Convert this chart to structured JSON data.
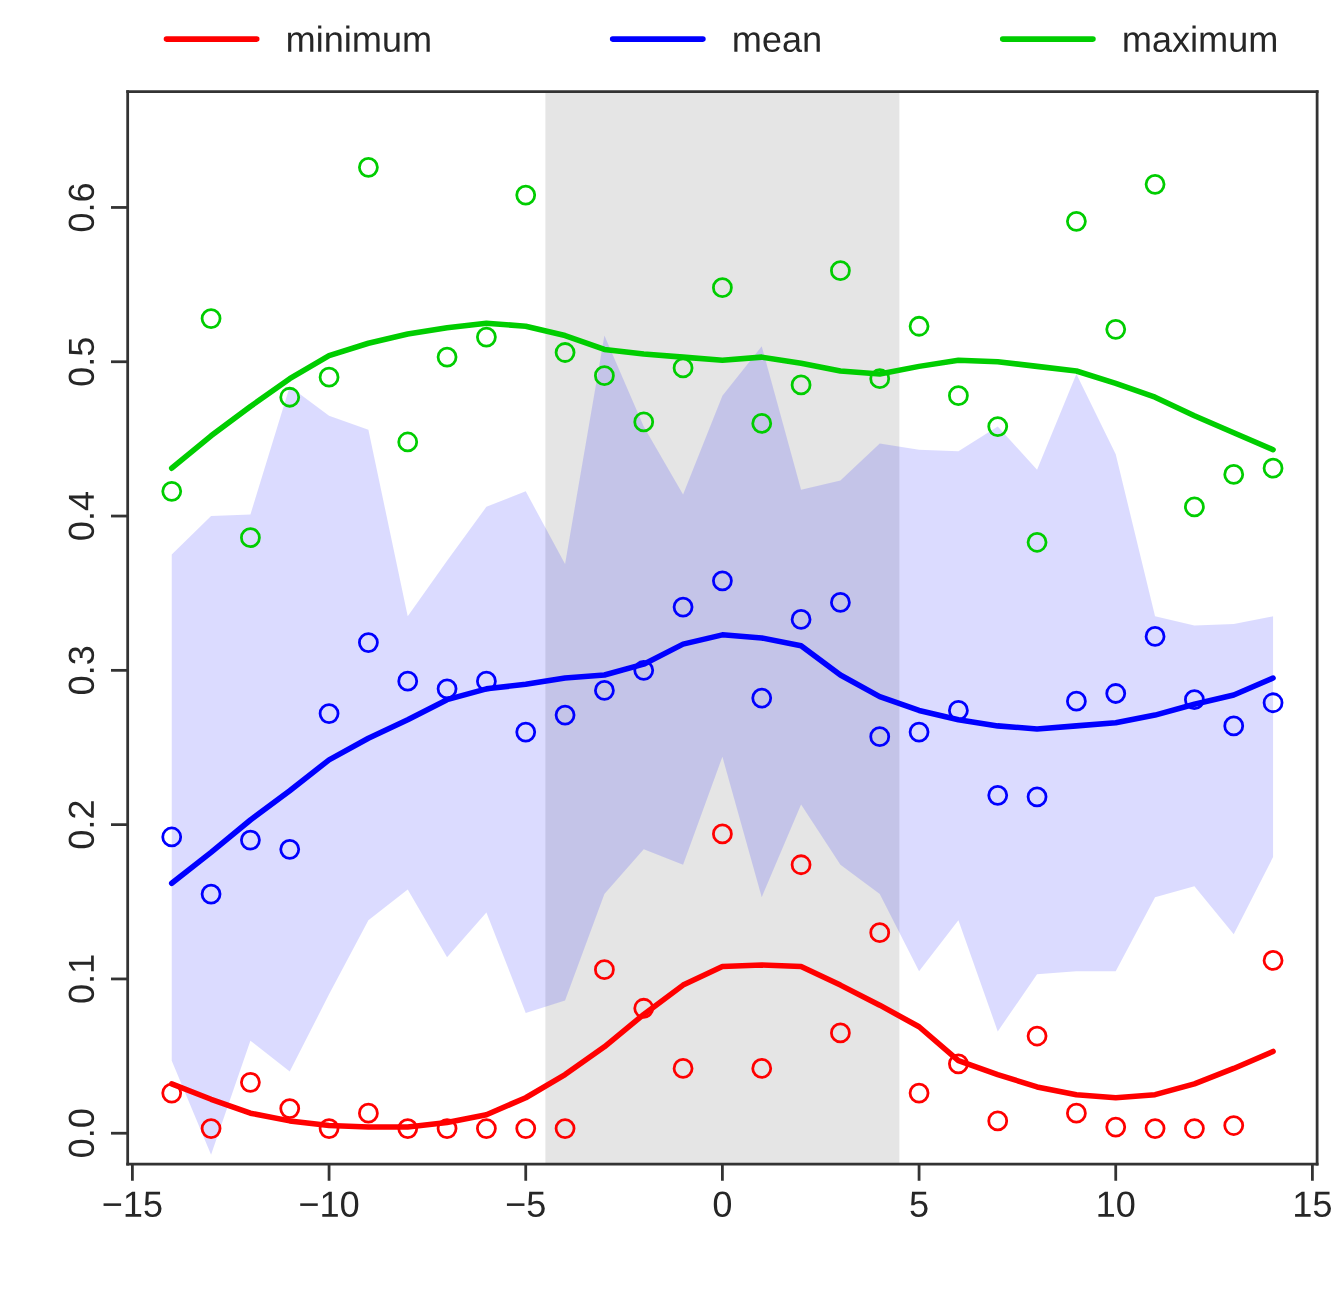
{
  "chart_data": {
    "type": "line",
    "x": [
      -14,
      -13,
      -12,
      -11,
      -10,
      -9,
      -8,
      -7,
      -6,
      -5,
      -4,
      -3,
      -2,
      -1,
      0,
      1,
      2,
      3,
      4,
      5,
      6,
      7,
      8,
      9,
      10,
      11,
      12,
      13,
      14
    ],
    "series": [
      {
        "type": "scatter",
        "color": "#ff0000",
        "marker": "circle",
        "values": [
          0.026,
          0.003,
          0.033,
          0.016,
          0.003,
          0.013,
          0.003,
          0.003,
          0.003,
          0.003,
          0.003,
          0.106,
          0.081,
          0.042,
          0.194,
          0.042,
          0.174,
          0.065,
          0.13,
          0.026,
          0.045,
          0.008,
          0.063,
          0.013,
          0.004,
          0.003,
          0.003,
          0.005,
          0.112
        ]
      },
      {
        "type": "scatter",
        "color": "#0000ff",
        "marker": "circle",
        "values": [
          0.192,
          0.155,
          0.19,
          0.184,
          0.272,
          0.318,
          0.293,
          0.288,
          0.293,
          0.26,
          0.271,
          0.287,
          0.3,
          0.341,
          0.358,
          0.282,
          0.333,
          0.344,
          0.257,
          0.26,
          0.274,
          0.219,
          0.218,
          0.28,
          0.285,
          0.322,
          0.281,
          0.264,
          0.279
        ]
      },
      {
        "type": "scatter",
        "color": "#00cd00",
        "marker": "circle",
        "values": [
          0.416,
          0.528,
          0.386,
          0.477,
          0.49,
          0.626,
          0.448,
          0.503,
          0.516,
          0.608,
          0.506,
          0.491,
          0.461,
          0.496,
          0.548,
          0.46,
          0.485,
          0.559,
          0.489,
          0.523,
          0.478,
          0.458,
          0.383,
          0.591,
          0.521,
          0.615,
          0.406,
          0.427,
          0.431
        ]
      },
      {
        "name": "minimum",
        "color": "#ff0000",
        "values": [
          0.032,
          0.022,
          0.013,
          0.008,
          0.005,
          0.004,
          0.004,
          0.007,
          0.012,
          0.023,
          0.038,
          0.056,
          0.077,
          0.096,
          0.108,
          0.109,
          0.108,
          0.096,
          0.083,
          0.069,
          0.047,
          0.038,
          0.03,
          0.025,
          0.023,
          0.025,
          0.032,
          0.042,
          0.053
        ]
      },
      {
        "name": "mean",
        "color": "#0000ff",
        "values": [
          0.162,
          0.182,
          0.203,
          0.222,
          0.242,
          0.256,
          0.268,
          0.281,
          0.288,
          0.291,
          0.295,
          0.297,
          0.304,
          0.317,
          0.323,
          0.321,
          0.316,
          0.297,
          0.283,
          0.274,
          0.268,
          0.264,
          0.262,
          0.264,
          0.266,
          0.271,
          0.278,
          0.284,
          0.295
        ],
        "lower": [
          0.047,
          -0.014,
          0.06,
          0.04,
          0.09,
          0.138,
          0.158,
          0.114,
          0.143,
          0.078,
          0.086,
          0.155,
          0.184,
          0.174,
          0.244,
          0.153,
          0.213,
          0.174,
          0.155,
          0.105,
          0.138,
          0.066,
          0.103,
          0.105,
          0.105,
          0.153,
          0.16,
          0.129,
          0.179
        ],
        "upper": [
          0.375,
          0.4,
          0.401,
          0.484,
          0.465,
          0.456,
          0.335,
          0.371,
          0.406,
          0.416,
          0.369,
          0.517,
          0.458,
          0.414,
          0.478,
          0.51,
          0.417,
          0.423,
          0.447,
          0.443,
          0.442,
          0.458,
          0.43,
          0.492,
          0.44,
          0.335,
          0.329,
          0.33,
          0.335
        ]
      },
      {
        "name": "maximum",
        "color": "#00cd00",
        "values": [
          0.431,
          0.452,
          0.471,
          0.489,
          0.504,
          0.512,
          0.518,
          0.522,
          0.525,
          0.523,
          0.517,
          0.508,
          0.505,
          0.503,
          0.501,
          0.503,
          0.499,
          0.494,
          0.492,
          0.497,
          0.501,
          0.5,
          0.497,
          0.494,
          0.486,
          0.477,
          0.465,
          0.454,
          0.443
        ]
      }
    ],
    "bands": [
      {
        "axis": "x",
        "from": -4.5,
        "to": 4.5,
        "color": "#e5e5e5"
      }
    ],
    "xlim": [
      -15.12,
      15.12
    ],
    "ylim": [
      -0.02,
      0.675
    ],
    "xticks": [
      {
        "value": -15,
        "label": "−15"
      },
      {
        "value": -10,
        "label": "−10"
      },
      {
        "value": -5,
        "label": "−5"
      },
      0,
      5,
      10,
      15
    ],
    "yticks": [
      {
        "value": 0,
        "label": "0.0"
      },
      0.1,
      0.2,
      0.3,
      0.4,
      0.5,
      0.6
    ],
    "grid": false,
    "legend": "top"
  }
}
